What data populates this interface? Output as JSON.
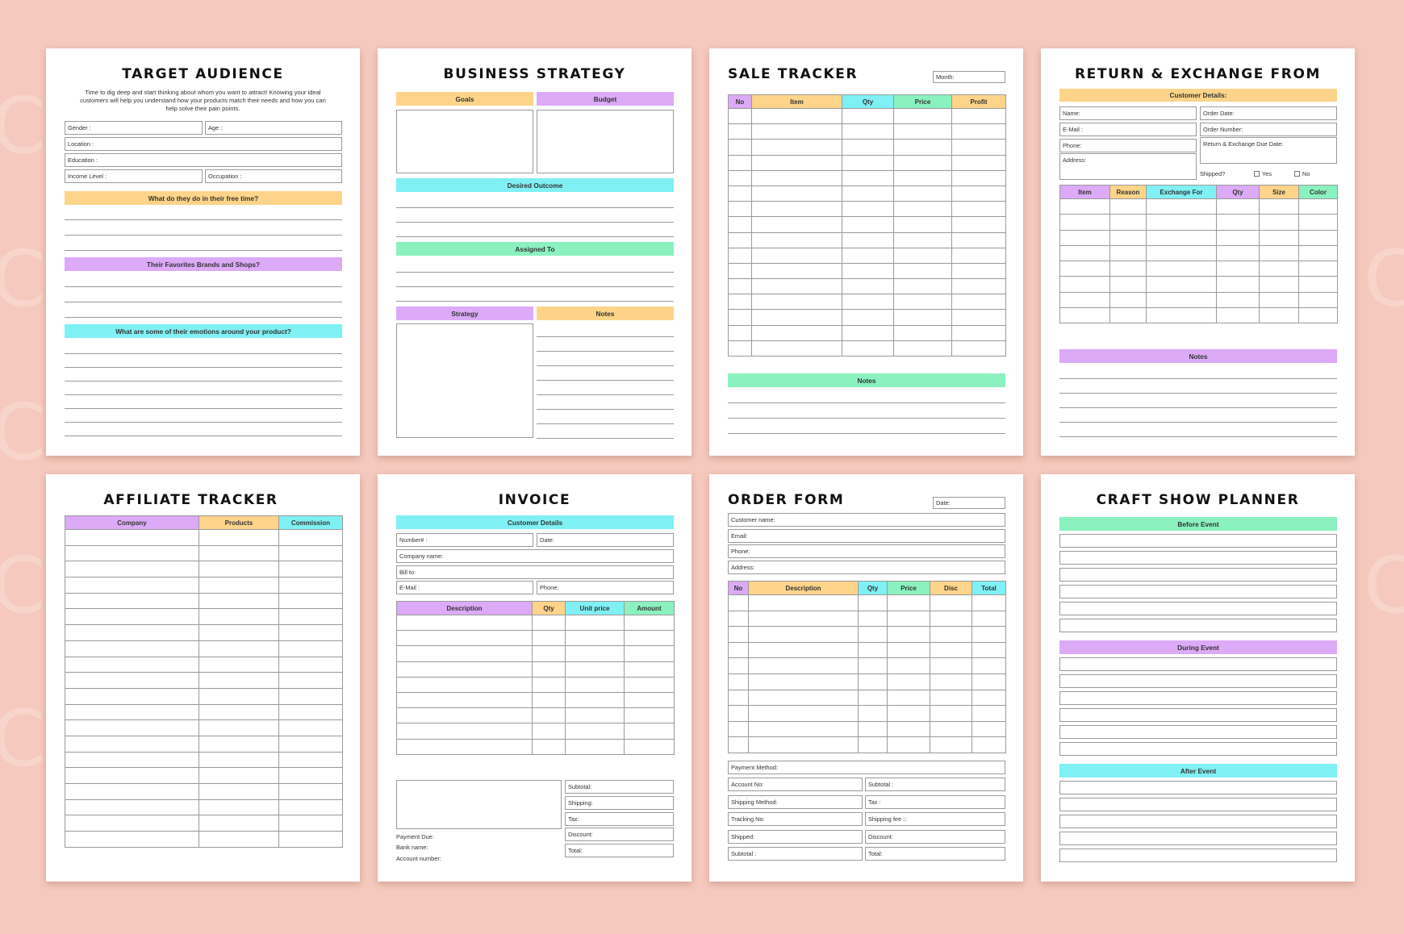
{
  "colors": {
    "background": "#f5c9bd",
    "yellow": "#fdd48a",
    "purple": "#dcaaf7",
    "cyan": "#7ff0f4",
    "green": "#8af1bf"
  },
  "watermark": "Craft",
  "target_audience": {
    "title": "TARGET AUDIENCE",
    "intro": "Time to dig deep and start thinking about whom you want to attract! Knowing your ideal customers will help you understand how your products match their needs and how you can help solve their pain points.",
    "fields": {
      "gender": "Gender :",
      "age": "Age :",
      "location": "Location :",
      "education": "Education :",
      "income": "Income Level :",
      "occupation": "Occupation :"
    },
    "q1": "What do they do in their free time?",
    "q2": "Their Favorites Brands and Shops?",
    "q3": "What are some of their emotions around your product?"
  },
  "business_strategy": {
    "title": "BUSINESS STRATEGY",
    "goals": "Goals",
    "budget": "Budget",
    "desired_outcome": "Desired Outcome",
    "assigned_to": "Assigned To",
    "strategy": "Strategy",
    "notes": "Notes"
  },
  "sale_tracker": {
    "title": "SALE TRACKER",
    "month": "Month:",
    "columns": [
      "No",
      "Item",
      "Qty",
      "Price",
      "Profit"
    ],
    "notes": "Notes"
  },
  "return_exchange": {
    "title": "RETURN & EXCHANGE FROM",
    "customer_details": "Customer Details:",
    "name": "Name:",
    "email": "E-Mail :",
    "phone": "Phone:",
    "address": "Address:",
    "order_date": "Order Date:",
    "order_number": "Order Number:",
    "due_date": "Return & Exchange Due Date:",
    "shipped": "Shipped?",
    "yes": "Yes",
    "no": "No",
    "columns": [
      "Item",
      "Reason",
      "Exchange For",
      "Qty",
      "Size",
      "Color"
    ],
    "notes": "Notes"
  },
  "affiliate_tracker": {
    "title": "AFFILIATE TRACKER",
    "columns": [
      "Company",
      "Products",
      "Commission"
    ]
  },
  "invoice": {
    "title": "INVOICE",
    "customer_details": "Customer Details",
    "number": "Number# :",
    "date": "Date:",
    "company": "Company name:",
    "bill_to": "Bill to:",
    "email": "E-Mail :",
    "phone": "Phone:",
    "columns": [
      "Description",
      "Qty",
      "Unit price",
      "Amount"
    ],
    "subtotal": "Subtotal:",
    "shipping": "Shipping:",
    "tax": "Tax:",
    "discount": "Discount:",
    "total": "Total:",
    "payment_due": "Payment Due:",
    "bank_name": "Bank name:",
    "account_number": "Account number:"
  },
  "order_form": {
    "title": "ORDER FORM",
    "date": "Date:",
    "customer_name": "Customer name:",
    "email": "Email:",
    "phone": "Phone:",
    "address": "Address:",
    "columns": [
      "No",
      "Description",
      "Qty",
      "Price",
      "Disc",
      "Total"
    ],
    "payment_method": "Payment Method:",
    "account_no": "Account No:",
    "shipping_method": "Shipping Method:",
    "tracking_no": "Tracking No:",
    "shipped": "Shipped:",
    "subtotal_left": "Subtotal :",
    "subtotal": "Subtotal :",
    "tax": "Tax :",
    "shipping_fee": "Shipping fee ::",
    "discount": "Discount:",
    "total": "Total:"
  },
  "craft_show_planner": {
    "title": "CRAFT SHOW PLANNER",
    "before": "Before Event",
    "during": "During Event",
    "after": "After Event"
  }
}
